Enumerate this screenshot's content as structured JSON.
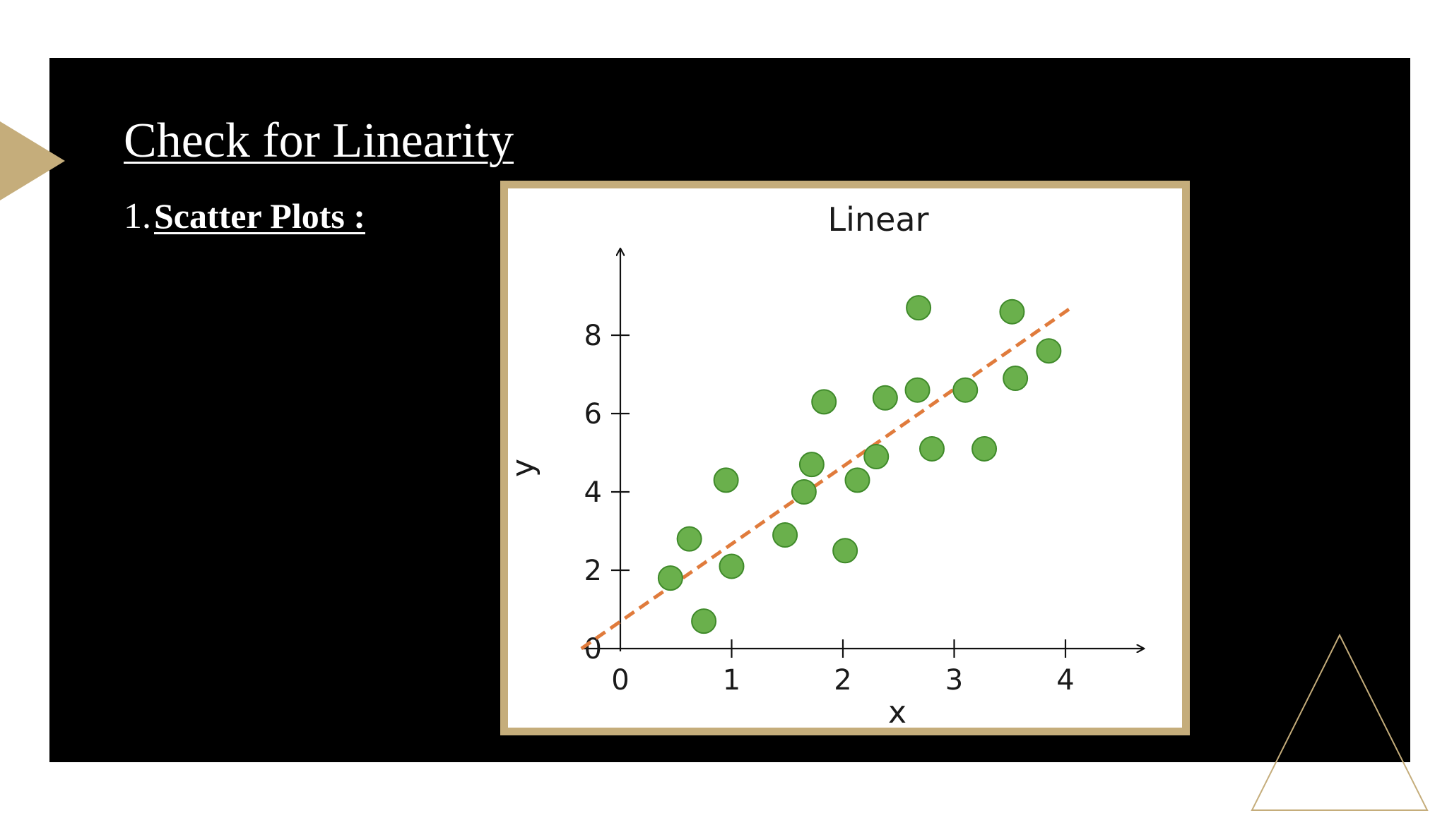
{
  "slide": {
    "title": "Check for Linearity",
    "subtitle_number": "1.",
    "subtitle_text": "Scatter Plots :"
  },
  "colors": {
    "background": "#000000",
    "accent": "#c5ad7b",
    "point_fill": "#6ab04c",
    "point_stroke": "#3f8a2a",
    "trend_line": "#e07b3c"
  },
  "chart_data": {
    "type": "scatter",
    "title": "Linear",
    "xlabel": "x",
    "ylabel": "y",
    "xlim": [
      0,
      4.7
    ],
    "ylim": [
      0,
      10.2
    ],
    "x_ticks": [
      0,
      1,
      2,
      3,
      4
    ],
    "y_ticks": [
      2,
      4,
      6,
      8
    ],
    "grid": false,
    "points": [
      {
        "x": 0.45,
        "y": 1.8
      },
      {
        "x": 0.62,
        "y": 2.8
      },
      {
        "x": 0.75,
        "y": 0.7
      },
      {
        "x": 0.95,
        "y": 4.3
      },
      {
        "x": 1.0,
        "y": 2.1
      },
      {
        "x": 1.48,
        "y": 2.9
      },
      {
        "x": 1.65,
        "y": 4.0
      },
      {
        "x": 1.72,
        "y": 4.7
      },
      {
        "x": 1.83,
        "y": 6.3
      },
      {
        "x": 2.02,
        "y": 2.5
      },
      {
        "x": 2.13,
        "y": 4.3
      },
      {
        "x": 2.3,
        "y": 4.9
      },
      {
        "x": 2.38,
        "y": 6.4
      },
      {
        "x": 2.67,
        "y": 6.6
      },
      {
        "x": 2.68,
        "y": 8.7
      },
      {
        "x": 2.8,
        "y": 5.1
      },
      {
        "x": 3.1,
        "y": 6.6
      },
      {
        "x": 3.27,
        "y": 5.1
      },
      {
        "x": 3.52,
        "y": 8.6
      },
      {
        "x": 3.55,
        "y": 6.9
      },
      {
        "x": 3.85,
        "y": 7.6
      }
    ],
    "trend_line": {
      "x": [
        -0.35,
        4.05
      ],
      "y": [
        0.0,
        8.7
      ],
      "style": "dashed"
    }
  }
}
